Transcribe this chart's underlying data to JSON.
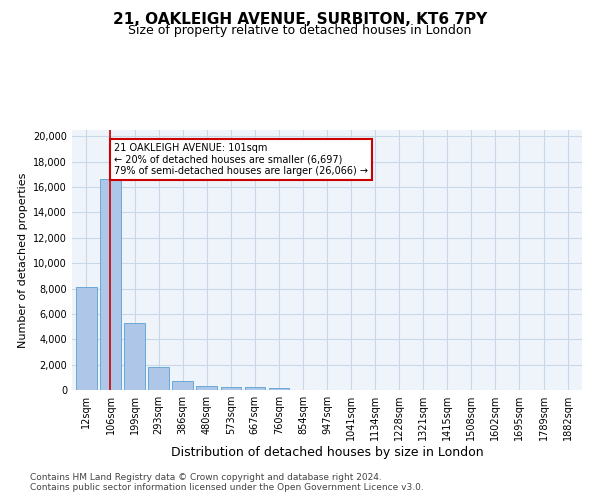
{
  "title1": "21, OAKLEIGH AVENUE, SURBITON, KT6 7PY",
  "title2": "Size of property relative to detached houses in London",
  "xlabel": "Distribution of detached houses by size in London",
  "ylabel": "Number of detached properties",
  "categories": [
    "12sqm",
    "106sqm",
    "199sqm",
    "293sqm",
    "386sqm",
    "480sqm",
    "573sqm",
    "667sqm",
    "760sqm",
    "854sqm",
    "947sqm",
    "1041sqm",
    "1134sqm",
    "1228sqm",
    "1321sqm",
    "1415sqm",
    "1508sqm",
    "1602sqm",
    "1695sqm",
    "1789sqm",
    "1882sqm"
  ],
  "values": [
    8100,
    16600,
    5300,
    1850,
    700,
    350,
    270,
    210,
    170,
    0,
    0,
    0,
    0,
    0,
    0,
    0,
    0,
    0,
    0,
    0,
    0
  ],
  "bar_color": "#aec6e8",
  "bar_edge_color": "#5a9fd4",
  "vline_x": 1.0,
  "vline_color": "#cc0000",
  "annotation_text": "21 OAKLEIGH AVENUE: 101sqm\n← 20% of detached houses are smaller (6,697)\n79% of semi-detached houses are larger (26,066) →",
  "annotation_box_color": "#cc0000",
  "ylim": [
    0,
    20500
  ],
  "yticks": [
    0,
    2000,
    4000,
    6000,
    8000,
    10000,
    12000,
    14000,
    16000,
    18000,
    20000
  ],
  "grid_color": "#c8d8e8",
  "background_color": "#eef4fa",
  "footer": "Contains HM Land Registry data © Crown copyright and database right 2024.\nContains public sector information licensed under the Open Government Licence v3.0.",
  "title1_fontsize": 11,
  "title2_fontsize": 9,
  "xlabel_fontsize": 9,
  "ylabel_fontsize": 8,
  "tick_fontsize": 7,
  "footer_fontsize": 6.5
}
